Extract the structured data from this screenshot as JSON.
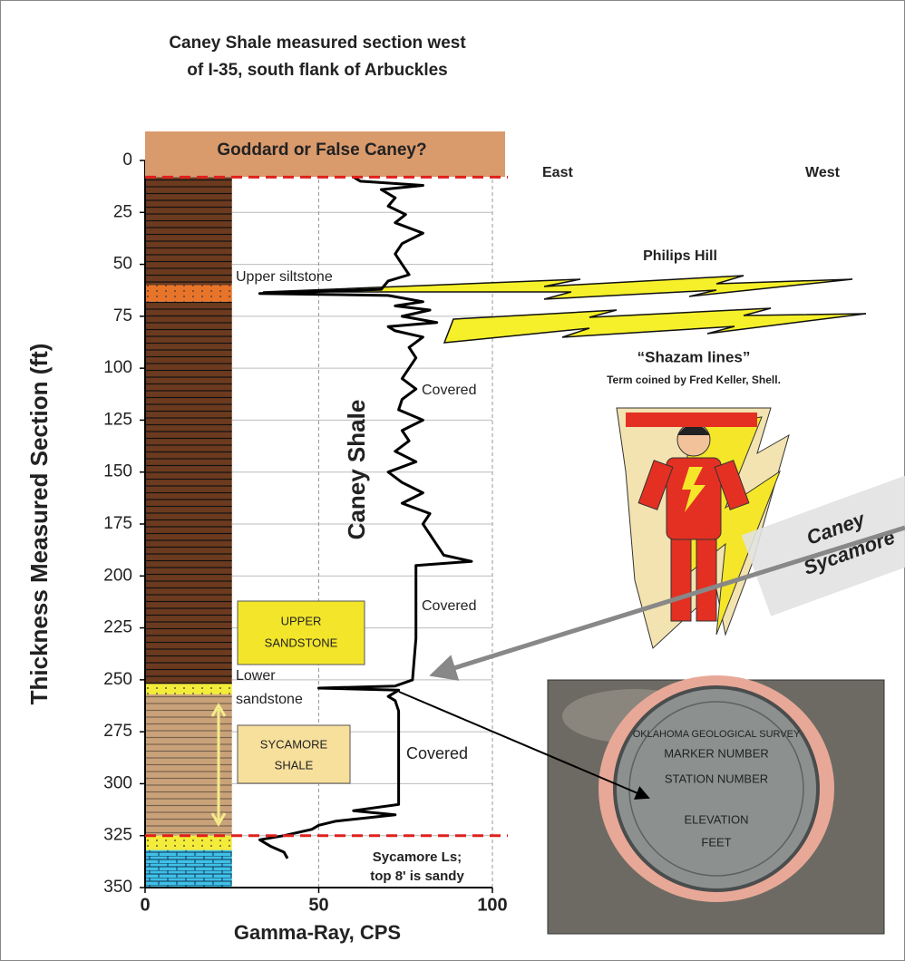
{
  "chart_data": {
    "type": "line",
    "title": [
      "Caney Shale measured section west",
      "of I-35, south flank of Arbuckles"
    ],
    "y_label": "Thickness Measured Section (ft)",
    "x_label": "Gamma-Ray, CPS",
    "xlim": [
      0,
      100
    ],
    "xticks": [
      0,
      50,
      100
    ],
    "ylim": [
      0,
      350
    ],
    "yticks": [
      0,
      25,
      50,
      75,
      100,
      125,
      150,
      175,
      200,
      225,
      250,
      275,
      300,
      325,
      350
    ],
    "y_inverted": true,
    "grid": true,
    "series": [
      {
        "color": "#000000",
        "depth": [
          8,
          10,
          12,
          14,
          18,
          22,
          26,
          30,
          35,
          40,
          45,
          50,
          55,
          58,
          62,
          64,
          65,
          68,
          70,
          72,
          75,
          78,
          80,
          82,
          85,
          90,
          95,
          100,
          105,
          110,
          115,
          120,
          125,
          130,
          135,
          140,
          145,
          150,
          155,
          160,
          165,
          170,
          175,
          180,
          185,
          190,
          193,
          195,
          200,
          230,
          250,
          253,
          254,
          255,
          258,
          260,
          265,
          300,
          310,
          313,
          315,
          318,
          320,
          322,
          325,
          327,
          330,
          333,
          336
        ],
        "values": [
          60,
          62,
          80,
          68,
          72,
          70,
          75,
          72,
          80,
          74,
          72,
          74,
          76,
          70,
          68,
          33,
          70,
          80,
          72,
          82,
          74,
          84,
          70,
          72,
          80,
          76,
          78,
          76,
          74,
          78,
          74,
          73,
          80,
          74,
          76,
          72,
          78,
          70,
          74,
          80,
          74,
          82,
          80,
          82,
          84,
          86,
          94,
          78,
          78,
          78,
          77,
          72,
          50,
          73,
          70,
          72,
          73,
          73,
          73,
          60,
          72,
          55,
          50,
          48,
          40,
          33,
          36,
          40,
          41
        ]
      }
    ],
    "layers": [
      {
        "top": 8,
        "base": 60,
        "color": "#6b3a1f",
        "pattern": "lines"
      },
      {
        "top": 60,
        "base": 68,
        "color": "#e8742a",
        "pattern": "dots"
      },
      {
        "top": 68,
        "base": 252,
        "color": "#6b3a1f",
        "pattern": "lines"
      },
      {
        "top": 252,
        "base": 257,
        "color": "#f3ec3a",
        "pattern": "dots"
      },
      {
        "top": 257,
        "base": 325,
        "color": "#c9a27a",
        "pattern": "lines"
      },
      {
        "top": 325,
        "base": 332,
        "color": "#f3ec3a",
        "pattern": "dots"
      },
      {
        "top": 332,
        "base": 350,
        "color": "#3fc1e6",
        "pattern": "bricks"
      }
    ],
    "horizons": [
      8,
      325
    ],
    "annotations": {
      "goddard": "Goddard or False Caney?",
      "east": "East",
      "west": "West",
      "upper_siltstone": "Upper siltstone",
      "philips_hill": "Philips Hill",
      "shazam": "“Shazam lines”",
      "coined": "Term coined by Fred Keller, Shell.",
      "caney_shale": "Caney Shale",
      "covered": [
        "Covered",
        "Covered",
        "Covered"
      ],
      "upper_sandstone": [
        "UPPER",
        "SANDSTONE"
      ],
      "lower_sandstone": [
        "Lower",
        "sandstone"
      ],
      "sycamore_shale": [
        "SYCAMORE",
        "SHALE"
      ],
      "sycamore_ls": [
        "Sycamore Ls;",
        "top 8' is sandy"
      ],
      "contact": [
        "Caney",
        "Sycamore"
      ],
      "marker": [
        "OKLAHOMA GEOLOGICAL SURVEY",
        "MARKER NUMBER",
        "STATION NUMBER",
        "ELEVATION",
        "FEET"
      ]
    }
  }
}
